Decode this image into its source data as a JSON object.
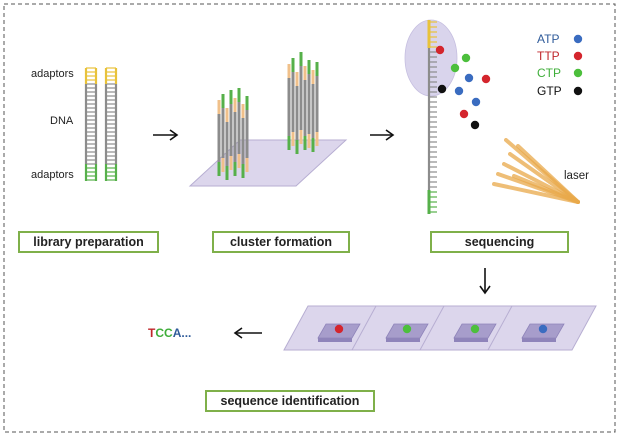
{
  "stages": {
    "library_preparation": "library preparation",
    "cluster_formation": "cluster formation",
    "sequencing": "sequencing",
    "sequence_identification": "sequence identification"
  },
  "library_labels": {
    "adaptors_top": "adaptors",
    "dna": "DNA",
    "adaptors_bottom": "adaptors"
  },
  "legend": [
    {
      "name": "ATP",
      "text_color": "#2f5b9a",
      "dot_color": "#3a6cc0"
    },
    {
      "name": "TTP",
      "text_color": "#c0262b",
      "dot_color": "#d4252d"
    },
    {
      "name": "CTP",
      "text_color": "#3fae3a",
      "dot_color": "#4cbf3c"
    },
    {
      "name": "GTP",
      "text_color": "#111111",
      "dot_color": "#111111"
    }
  ],
  "laser_label": "laser",
  "sequence_result": {
    "letters": [
      {
        "char": "T",
        "color": "#c0262b"
      },
      {
        "char": "C",
        "color": "#3fae3a"
      },
      {
        "char": "C",
        "color": "#3fae3a"
      },
      {
        "char": "A",
        "color": "#2f5b9a"
      },
      {
        "char": "...",
        "color": "#2f5b9a"
      }
    ]
  },
  "flowcell_spots": [
    "#d4252d",
    "#4cbf3c",
    "#4cbf3c",
    "#3a6cc0"
  ],
  "colors": {
    "adaptor_top": "#e8c23a",
    "adaptor_bottom": "#56b04a",
    "dna_strand": "#8c8c8c",
    "cluster_tip": "#f0c08a",
    "cluster_base": "#56b04a",
    "plate_fill": "#dcd6ec",
    "plate_edge": "#b7aed2",
    "stage_border": "#7fb04a"
  }
}
